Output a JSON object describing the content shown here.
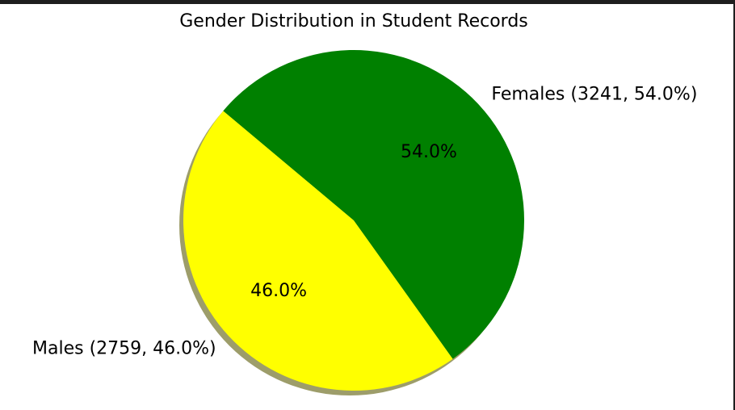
{
  "chart_data": {
    "type": "pie",
    "title": "Gender Distribution in Student Records",
    "slices": [
      {
        "name": "Males",
        "value": 2759,
        "percent": 46.0,
        "label": "Males (2759, 46.0%)",
        "pct_label": "46.0%",
        "color": "#ffff00"
      },
      {
        "name": "Females",
        "value": 3241,
        "percent": 54.0,
        "label": "Females (3241, 54.0%)",
        "pct_label": "54.0%",
        "color": "#008000"
      }
    ],
    "start_angle": 140,
    "shadow": true,
    "legend": "none"
  }
}
